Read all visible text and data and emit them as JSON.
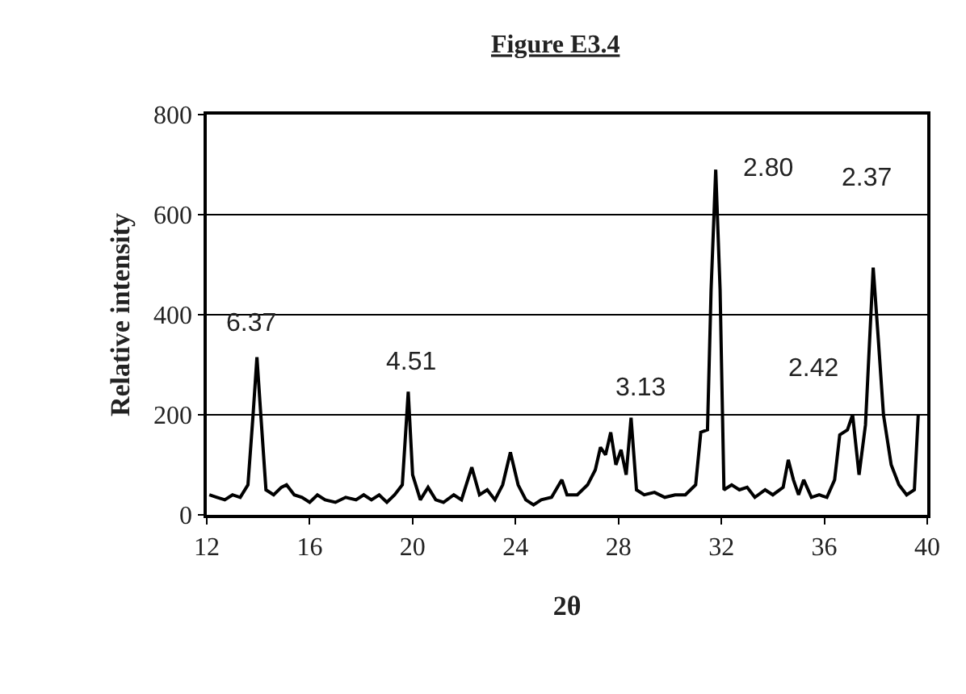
{
  "chart_data": {
    "type": "line",
    "title": "Figure E3.4",
    "xlabel": "2θ",
    "ylabel": "Relative intensity",
    "x": [
      12.1,
      12.4,
      12.7,
      13.0,
      13.3,
      13.6,
      13.8,
      13.95,
      14.1,
      14.3,
      14.6,
      14.9,
      15.1,
      15.4,
      15.7,
      16.0,
      16.3,
      16.6,
      17.0,
      17.4,
      17.8,
      18.1,
      18.4,
      18.7,
      19.0,
      19.3,
      19.6,
      19.83,
      20.0,
      20.3,
      20.6,
      20.9,
      21.2,
      21.6,
      21.9,
      22.3,
      22.6,
      22.9,
      23.2,
      23.5,
      23.8,
      24.1,
      24.4,
      24.7,
      25.0,
      25.4,
      25.8,
      26.0,
      26.4,
      26.8,
      27.1,
      27.3,
      27.5,
      27.7,
      27.9,
      28.1,
      28.3,
      28.49,
      28.7,
      29.0,
      29.4,
      29.8,
      30.2,
      30.6,
      31.0,
      31.2,
      31.46,
      31.6,
      31.78,
      31.95,
      32.1,
      32.4,
      32.7,
      33.0,
      33.3,
      33.7,
      34.0,
      34.4,
      34.6,
      34.8,
      35.0,
      35.2,
      35.5,
      35.8,
      36.1,
      36.4,
      36.6,
      36.9,
      37.1,
      37.35,
      37.6,
      37.9,
      38.1,
      38.3,
      38.6,
      38.9,
      39.2,
      39.5,
      39.65
    ],
    "series": [
      {
        "color": "#000000",
        "values": [
          40,
          35,
          30,
          40,
          35,
          60,
          200,
          315,
          200,
          50,
          40,
          55,
          60,
          40,
          35,
          25,
          40,
          30,
          25,
          35,
          30,
          40,
          30,
          40,
          25,
          40,
          60,
          246,
          80,
          30,
          55,
          30,
          25,
          40,
          30,
          95,
          40,
          50,
          30,
          60,
          125,
          60,
          30,
          20,
          30,
          35,
          70,
          40,
          40,
          60,
          90,
          135,
          120,
          165,
          100,
          130,
          80,
          194,
          50,
          40,
          45,
          35,
          40,
          40,
          60,
          165,
          170,
          450,
          690,
          450,
          50,
          60,
          50,
          55,
          35,
          50,
          40,
          55,
          110,
          70,
          40,
          70,
          35,
          40,
          35,
          70,
          160,
          170,
          200,
          80,
          180,
          494,
          350,
          200,
          100,
          60,
          40,
          50,
          200
        ]
      }
    ],
    "annotations": [
      {
        "text": "6.37",
        "x": 13.95,
        "y": 315
      },
      {
        "text": "4.51",
        "x": 19.83,
        "y": 246
      },
      {
        "text": "3.13",
        "x": 28.49,
        "y": 194
      },
      {
        "text": "2.80",
        "x": 31.78,
        "y": 690
      },
      {
        "text": "2.42",
        "x": 37.1,
        "y": 200
      },
      {
        "text": "2.37",
        "x": 37.9,
        "y": 494
      }
    ],
    "xlim": [
      12,
      40
    ],
    "xticks": [
      12,
      16,
      20,
      24,
      28,
      32,
      36,
      40
    ],
    "ylim": [
      0,
      800
    ],
    "yticks": [
      0,
      200,
      400,
      600,
      800
    ],
    "grid": "y",
    "marker": "none",
    "line_style": "solid"
  }
}
